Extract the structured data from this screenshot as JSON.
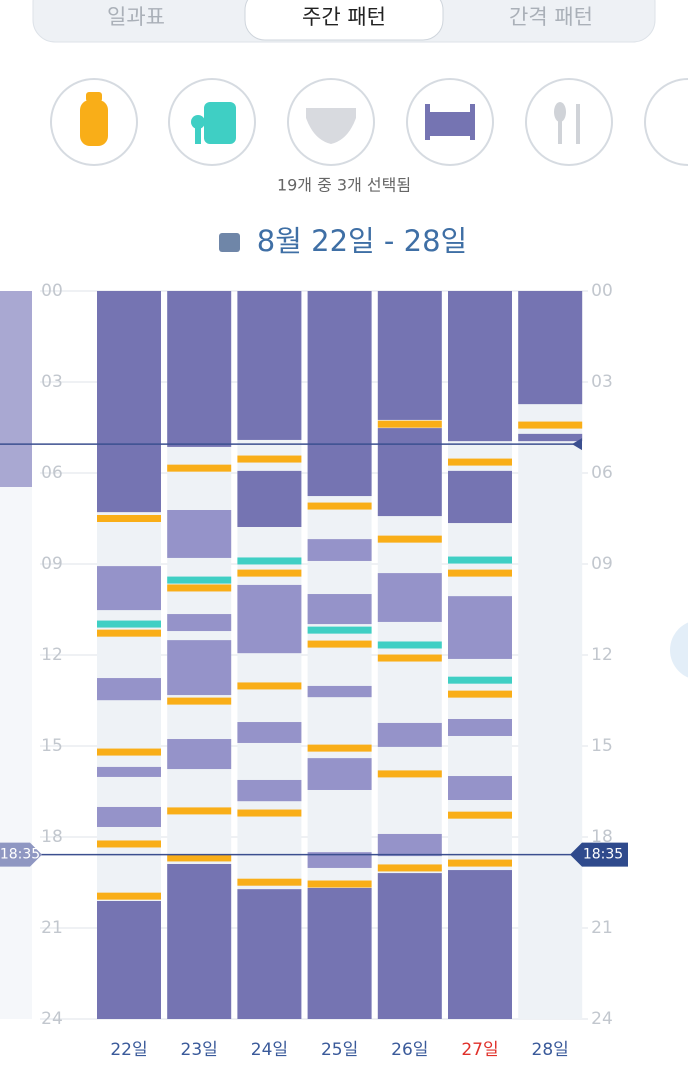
{
  "tabs": {
    "items": [
      "일과표",
      "주간 패턴",
      "간격 패턴"
    ],
    "active": 1
  },
  "selection_caption": "19개 중 3개 선택됨",
  "date_range": "8월 22일 - 28일",
  "chart": {
    "hour_ticks": [
      {
        "value": 0,
        "label": "00"
      },
      {
        "value": 3,
        "label": "03"
      },
      {
        "value": 6,
        "label": "06"
      },
      {
        "value": 9,
        "label": "09"
      },
      {
        "value": 12,
        "label": "12"
      },
      {
        "value": 15,
        "label": "15"
      },
      {
        "value": 18,
        "label": "18"
      },
      {
        "value": 21,
        "label": "21"
      },
      {
        "value": 24,
        "label": "24"
      }
    ],
    "ylim": [
      0,
      24
    ],
    "colors": {
      "sleep": "#7574b2",
      "nap": "#9593c9",
      "feed": "#f9ae18",
      "food": "#3fcfc4",
      "column": "#eef2f6"
    },
    "current_time": {
      "value": 18.58,
      "label": "18:35"
    },
    "marker": 5.05,
    "days": [
      {
        "label": "22일",
        "color": "#3a5a9a",
        "sleep": [
          [
            0,
            7.29
          ],
          [
            20.11,
            24
          ]
        ],
        "naps": [
          [
            9.07,
            10.52
          ],
          [
            12.76,
            13.49
          ],
          [
            15.69,
            16.02
          ],
          [
            17.01,
            17.67
          ]
        ],
        "feeds": [
          7.5,
          11.28,
          15.2,
          18.23,
          19.95
        ],
        "foods": [
          10.98
        ]
      },
      {
        "label": "23일",
        "color": "#3a5a9a",
        "sleep": [
          [
            0,
            5.14
          ],
          [
            18.89,
            24
          ]
        ],
        "naps": [
          [
            7.22,
            8.8
          ],
          [
            10.65,
            11.21
          ],
          [
            11.51,
            13.32
          ],
          [
            14.77,
            15.76
          ]
        ],
        "feeds": [
          5.84,
          9.79,
          13.52,
          17.14,
          18.69
        ],
        "foods": [
          9.53
        ]
      },
      {
        "label": "24일",
        "color": "#3a5a9a",
        "sleep": [
          [
            0,
            4.91
          ],
          [
            5.93,
            7.78
          ],
          [
            19.72,
            24
          ]
        ],
        "naps": [
          [
            9.69,
            11.94
          ],
          [
            14.21,
            14.9
          ],
          [
            16.12,
            16.82
          ]
        ],
        "feeds": [
          5.54,
          9.3,
          13.02,
          17.21,
          19.49
        ],
        "foods": [
          8.9
        ]
      },
      {
        "label": "25일",
        "color": "#3a5a9a",
        "sleep": [
          [
            0,
            6.76
          ],
          [
            19.68,
            24
          ]
        ],
        "naps": [
          [
            8.18,
            8.9
          ],
          [
            9.99,
            10.98
          ],
          [
            13.02,
            13.39
          ],
          [
            15.4,
            16.45
          ],
          [
            18.5,
            19.02
          ]
        ],
        "feeds": [
          7.09,
          11.64,
          15.07,
          19.55
        ],
        "foods": [
          11.18
        ]
      },
      {
        "label": "26일",
        "color": "#3a5a9a",
        "sleep": [
          [
            0,
            4.25
          ],
          [
            4.52,
            7.42
          ],
          [
            19.19,
            24
          ]
        ],
        "naps": [
          [
            9.3,
            10.91
          ],
          [
            14.24,
            15.03
          ],
          [
            17.9,
            18.63
          ]
        ],
        "feeds": [
          4.39,
          8.18,
          12.1,
          15.92,
          19.02
        ],
        "foods": [
          11.67
        ]
      },
      {
        "label": "27일",
        "color": "#e0302a",
        "sleep": [
          [
            0,
            4.95
          ],
          [
            5.93,
            7.65
          ],
          [
            19.09,
            24
          ]
        ],
        "naps": [
          [
            10.06,
            12.13
          ],
          [
            14.11,
            14.67
          ],
          [
            15.99,
            16.78
          ]
        ],
        "feeds": [
          5.64,
          9.3,
          13.29,
          17.28,
          18.86
        ],
        "foods": [
          8.87,
          12.83
        ]
      },
      {
        "label": "28일",
        "color": "#3a5a9a",
        "sleep": [
          [
            0,
            3.73
          ],
          [
            4.71,
            4.95
          ]
        ],
        "naps": [],
        "feeds": [
          4.42
        ],
        "foods": []
      }
    ]
  }
}
